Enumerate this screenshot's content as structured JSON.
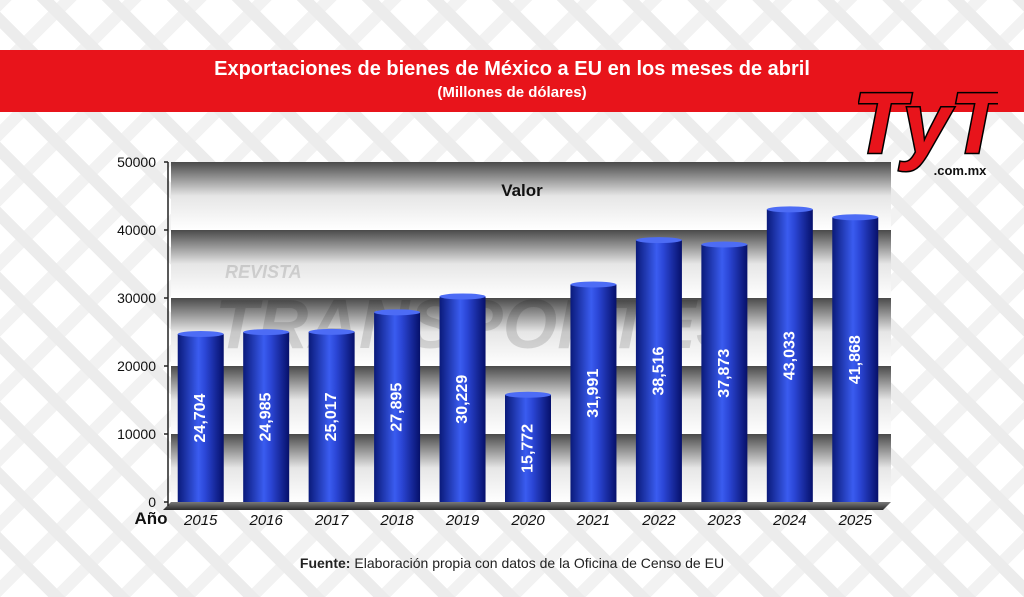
{
  "header": {
    "title": "Exportaciones de bienes de México a EU en los meses de abril",
    "subtitle": "(Millones de dólares)"
  },
  "logo": {
    "main": "TyT",
    "domain": ".com.mx"
  },
  "watermark": {
    "line1": "REVISTA",
    "line2": "TRANSPORTES"
  },
  "source": {
    "label": "Fuente:",
    "text": "Elaboración propia con datos de la Oficina de Censo de EU"
  },
  "colors": {
    "brand_red": "#e8141b",
    "bar_dark": "#0a1a7a",
    "bar_light": "#3a5cf0"
  },
  "chart_data": {
    "type": "bar",
    "title": "Exportaciones de bienes de México a EU en los meses de abril",
    "subtitle": "(Millones de dólares)",
    "xlabel": "Año",
    "ylabel": "",
    "series_label": "Valor",
    "categories": [
      "2015",
      "2016",
      "2017",
      "2018",
      "2019",
      "2020",
      "2021",
      "2022",
      "2023",
      "2024",
      "2025"
    ],
    "values": [
      24704,
      24985,
      25017,
      27895,
      30229,
      15772,
      31991,
      38516,
      37873,
      43033,
      41868
    ],
    "value_labels": [
      "24,704",
      "24,985",
      "25,017",
      "27,895",
      "30,229",
      "15,772",
      "31,991",
      "38,516",
      "37,873",
      "43,033",
      "41,868"
    ],
    "ylim": [
      0,
      50000
    ],
    "yticks": [
      "0",
      "10000",
      "20000",
      "30000",
      "40000",
      "50000"
    ],
    "grid": true,
    "legend": "none"
  }
}
